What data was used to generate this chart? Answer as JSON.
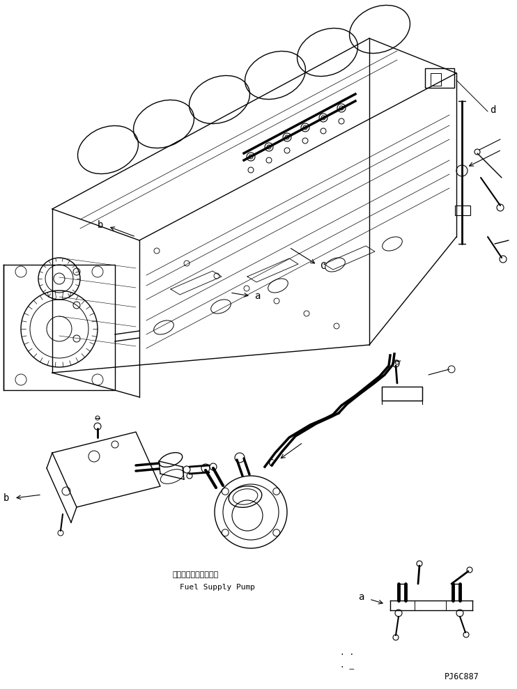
{
  "bg_color": "#ffffff",
  "line_color": "#000000",
  "fig_width": 7.42,
  "fig_height": 9.89,
  "dpi": 100,
  "label_a": "a",
  "label_b": "b",
  "label_c": "C",
  "label_d": "d",
  "jp_text": "フェルサプライボンプ",
  "en_text": "Fuel Supply Pump",
  "part_code": "PJ6C887",
  "font_mono": "monospace"
}
